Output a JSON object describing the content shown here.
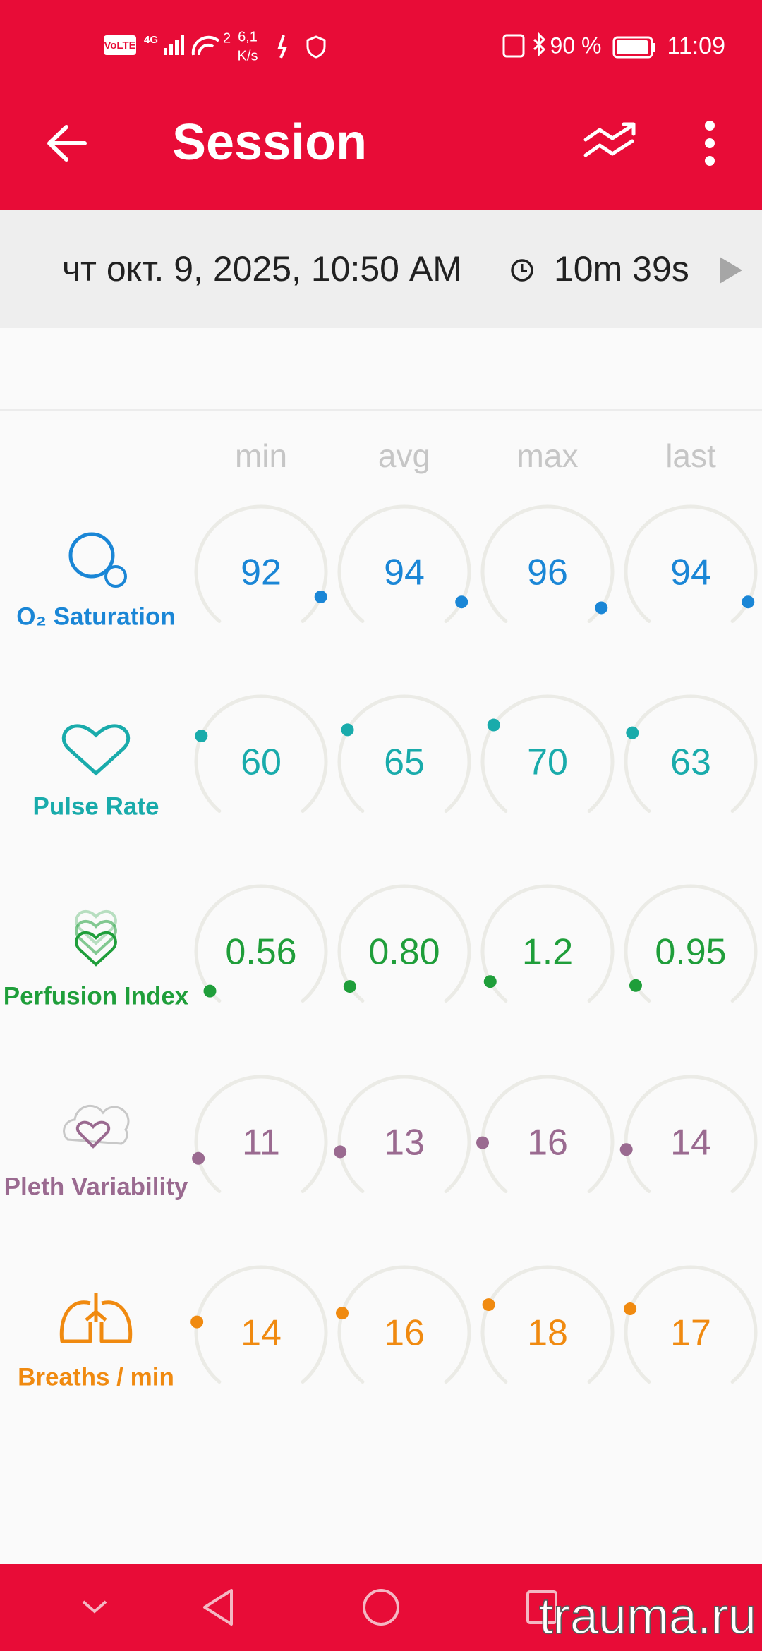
{
  "status_bar": {
    "network": "VoLTE",
    "signal": "4G",
    "wifi_badge": "2",
    "speed": "6,1",
    "speed_unit": "K/s",
    "battery": "90 %",
    "time": "11:09"
  },
  "app_bar": {
    "title": "Session"
  },
  "session": {
    "date": "чт окт. 9, 2025, 10:50 AM",
    "duration": "10m 39s"
  },
  "columns": [
    "min",
    "avg",
    "max",
    "last"
  ],
  "metrics": [
    {
      "label": "O₂ Saturation",
      "color": "#1a86d6",
      "values": [
        "92",
        "94",
        "96",
        "94"
      ]
    },
    {
      "label": "Pulse Rate",
      "color": "#19abab",
      "values": [
        "60",
        "65",
        "70",
        "63"
      ]
    },
    {
      "label": "Perfusion Index",
      "color": "#1f9e3a",
      "values": [
        "0.56",
        "0.80",
        "1.2",
        "0.95"
      ]
    },
    {
      "label": "Pleth Variability",
      "color": "#9a6a90",
      "values": [
        "11",
        "13",
        "16",
        "14"
      ]
    },
    {
      "label": "Breaths / min",
      "color": "#f08a10",
      "values": [
        "14",
        "16",
        "18",
        "17"
      ]
    }
  ],
  "watermark": "trauma.ru"
}
